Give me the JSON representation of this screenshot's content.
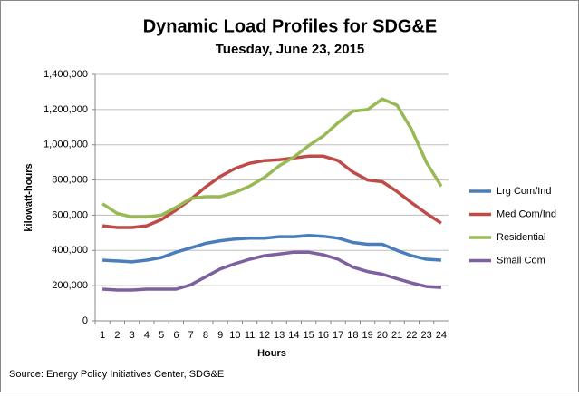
{
  "chart_data": {
    "type": "line",
    "title": "Dynamic Load Profiles for SDG&E",
    "subtitle": "Tuesday, June 23, 2015",
    "x_label": "Hours",
    "y_label": "kilowatt-hours",
    "source": "Source: Energy Policy Initiatives Center, SDG&E",
    "categories": [
      "1",
      "2",
      "3",
      "4",
      "5",
      "6",
      "7",
      "8",
      "9",
      "10",
      "11",
      "12",
      "13",
      "14",
      "15",
      "16",
      "17",
      "18",
      "19",
      "20",
      "21",
      "22",
      "23",
      "24"
    ],
    "series": [
      {
        "name": "Lrg Com/Ind",
        "color": "#4a7ebb",
        "values": [
          345000,
          340000,
          335000,
          345000,
          360000,
          390000,
          415000,
          440000,
          455000,
          465000,
          470000,
          470000,
          478000,
          478000,
          485000,
          480000,
          470000,
          445000,
          435000,
          435000,
          400000,
          370000,
          350000,
          345000
        ]
      },
      {
        "name": "Med Com/Ind",
        "color": "#be4b48",
        "values": [
          540000,
          530000,
          530000,
          540000,
          575000,
          630000,
          690000,
          760000,
          820000,
          865000,
          895000,
          910000,
          915000,
          925000,
          935000,
          935000,
          910000,
          845000,
          800000,
          790000,
          735000,
          670000,
          610000,
          555000
        ]
      },
      {
        "name": "Residential",
        "color": "#98b954",
        "values": [
          665000,
          610000,
          590000,
          590000,
          600000,
          645000,
          695000,
          705000,
          705000,
          730000,
          765000,
          815000,
          880000,
          930000,
          995000,
          1050000,
          1125000,
          1190000,
          1200000,
          1260000,
          1225000,
          1085000,
          900000,
          765000
        ]
      },
      {
        "name": "Small Com",
        "color": "#7d60a0",
        "values": [
          180000,
          175000,
          175000,
          180000,
          180000,
          180000,
          205000,
          250000,
          295000,
          325000,
          350000,
          370000,
          380000,
          390000,
          390000,
          375000,
          350000,
          305000,
          280000,
          265000,
          240000,
          215000,
          195000,
          190000
        ]
      }
    ],
    "ylim": [
      0,
      1400000
    ],
    "yticks": [
      0,
      {
        "value": 200000,
        "label": "200,000"
      },
      {
        "value": 400000,
        "label": "400,000"
      },
      {
        "value": 600000,
        "label": "600,000"
      },
      {
        "value": 800000,
        "label": "800,000"
      },
      {
        "value": 1000000,
        "label": "1,000,000"
      },
      {
        "value": 1200000,
        "label": "1,200,000"
      },
      {
        "value": 1400000,
        "label": "1,400,000"
      }
    ],
    "grid": true,
    "legend": "right"
  }
}
